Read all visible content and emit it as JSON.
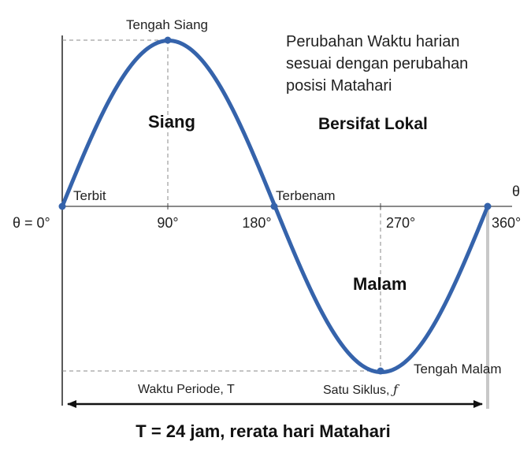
{
  "labels": {
    "noon": "Tengah Siang",
    "description": [
      "Perubahan Waktu harian",
      "sesuai dengan perubahan",
      "posisi Matahari"
    ],
    "day": "Siang",
    "local": "Bersifat Lokal",
    "sunrise": "Terbit",
    "sunset": "Terbenam",
    "theta_axis": "θ",
    "origin": "θ = 0°",
    "deg90": "90°",
    "deg180": "180°",
    "deg270": "270°",
    "deg360": "360°",
    "night": "Malam",
    "midnight": "Tengah Malam",
    "period": "Waktu Periode, T",
    "cycle": "Satu Siklus, ",
    "cycle_symbol": "ƒ",
    "summary": "T = 24 jam, rerata hari Matahari"
  },
  "colors": {
    "curve": "#3563ab",
    "axis": "#222222",
    "guide": "#888888",
    "end_bar": "#c8c8c8"
  }
}
